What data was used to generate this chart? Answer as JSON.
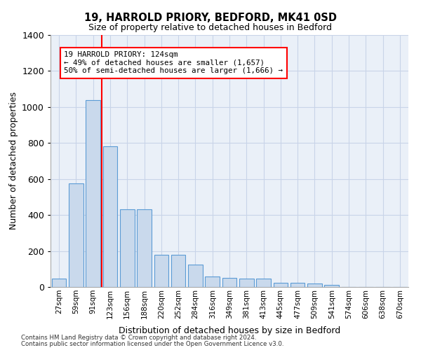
{
  "title1": "19, HARROLD PRIORY, BEDFORD, MK41 0SD",
  "title2": "Size of property relative to detached houses in Bedford",
  "xlabel": "Distribution of detached houses by size in Bedford",
  "ylabel": "Number of detached properties",
  "categories": [
    "27sqm",
    "59sqm",
    "91sqm",
    "123sqm",
    "156sqm",
    "188sqm",
    "220sqm",
    "252sqm",
    "284sqm",
    "316sqm",
    "349sqm",
    "381sqm",
    "413sqm",
    "445sqm",
    "477sqm",
    "509sqm",
    "541sqm",
    "574sqm",
    "606sqm",
    "638sqm",
    "670sqm"
  ],
  "values": [
    45,
    575,
    1040,
    780,
    430,
    430,
    180,
    180,
    125,
    60,
    50,
    48,
    48,
    25,
    22,
    18,
    12,
    0,
    0,
    0,
    0
  ],
  "bar_color": "#c9d9ec",
  "bar_edgecolor": "#5b9bd5",
  "redline_x": 2.5,
  "ylim": [
    0,
    1400
  ],
  "yticks": [
    0,
    200,
    400,
    600,
    800,
    1000,
    1200,
    1400
  ],
  "annotation_title": "19 HARROLD PRIORY: 124sqm",
  "annotation_line1": "← 49% of detached houses are smaller (1,657)",
  "annotation_line2": "50% of semi-detached houses are larger (1,666) →",
  "footer1": "Contains HM Land Registry data © Crown copyright and database right 2024.",
  "footer2": "Contains public sector information licensed under the Open Government Licence v3.0.",
  "background_color": "#ffffff",
  "plot_bg_color": "#eaf0f8",
  "grid_color": "#c8d4e8"
}
